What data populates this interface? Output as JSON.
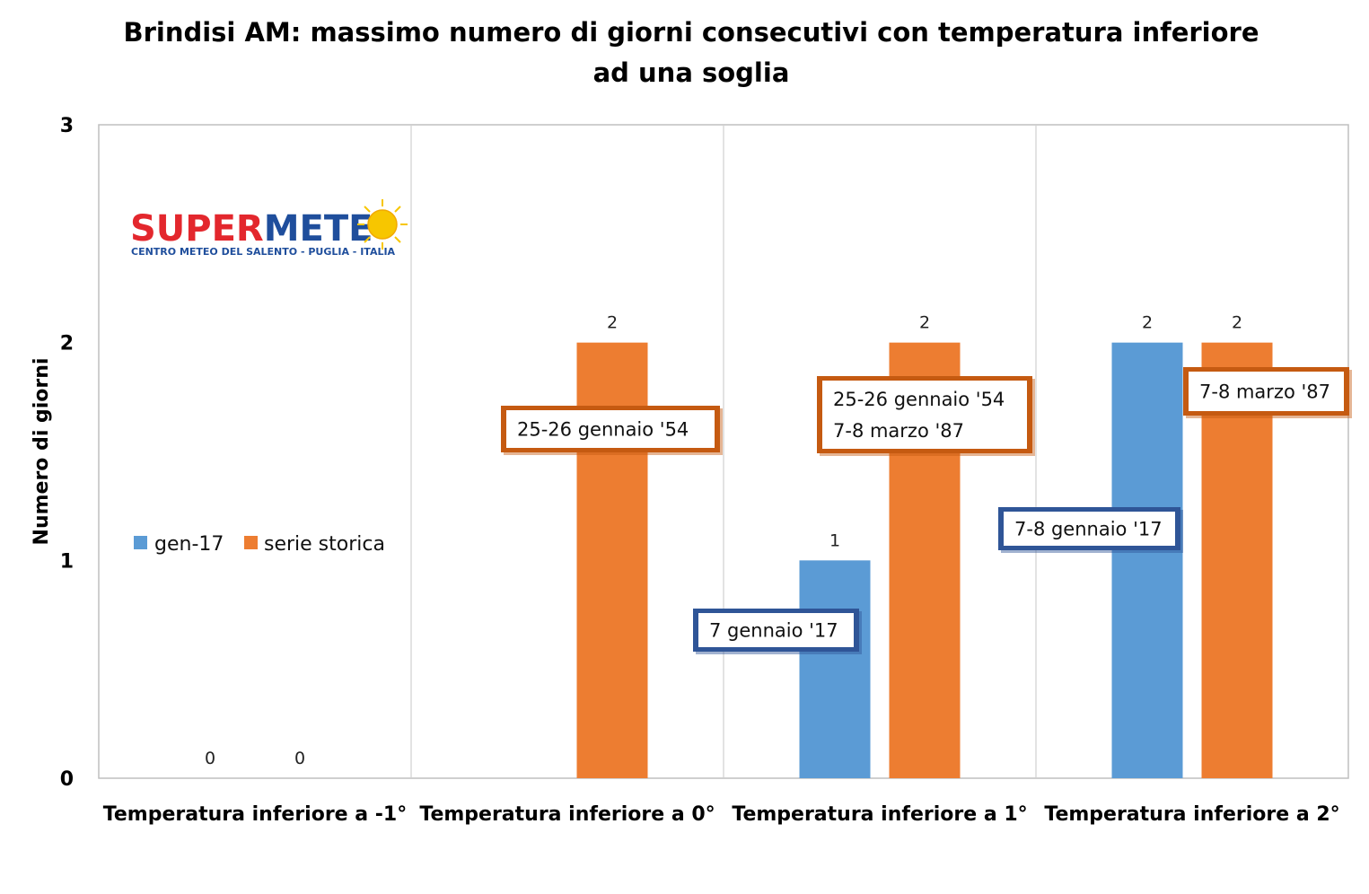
{
  "chart_data": {
    "type": "bar",
    "title_lines": [
      "Brindisi AM: massimo numero di giorni consecutivi con temperatura inferiore",
      "ad una soglia"
    ],
    "xlabel": "",
    "ylabel": "Numero di giorni",
    "ylim": [
      0,
      3
    ],
    "yticks": [
      "0",
      "1",
      "2",
      "3"
    ],
    "categories": [
      "Temperatura inferiore a -1°",
      "Temperatura inferiore a 0°",
      "Temperatura inferiore a 1°",
      "Temperatura inferiore a 2°"
    ],
    "series": [
      {
        "name": "gen-17",
        "color": "#5b9bd5",
        "values": [
          0,
          0,
          1,
          2
        ]
      },
      {
        "name": "serie storica",
        "color": "#ed7d31",
        "values": [
          0,
          2,
          2,
          2
        ]
      }
    ],
    "data_labels": [
      {
        "series": 0,
        "values": [
          "0",
          null,
          "1",
          "2"
        ]
      },
      {
        "series": 1,
        "values": [
          "0",
          "2",
          "2",
          "2"
        ]
      }
    ],
    "gridlines": "vertical category separators",
    "legend": "left-middle",
    "annotations": [
      {
        "category": 1,
        "series": 1,
        "lines": [
          "25-26 gennaio '54"
        ],
        "border_color": "#c55a11"
      },
      {
        "category": 2,
        "series": 0,
        "lines": [
          "7 gennaio '17"
        ],
        "border_color": "#2f5597"
      },
      {
        "category": 2,
        "series": 1,
        "lines": [
          "25-26 gennaio '54",
          "7-8 marzo '87"
        ],
        "border_color": "#c55a11"
      },
      {
        "category": 3,
        "series": 0,
        "lines": [
          "7-8 gennaio '17"
        ],
        "border_color": "#2f5597"
      },
      {
        "category": 3,
        "series": 1,
        "lines": [
          "7-8 marzo '87"
        ],
        "border_color": "#c55a11"
      }
    ]
  },
  "logo": {
    "part1": "SUPER",
    "part2": "METE",
    "subtitle": "CENTRO METEO DEL SALENTO - PUGLIA - ITALIA",
    "color1": "#e3272d",
    "color2": "#1f4e9c",
    "sun_color": "#f7c600"
  }
}
